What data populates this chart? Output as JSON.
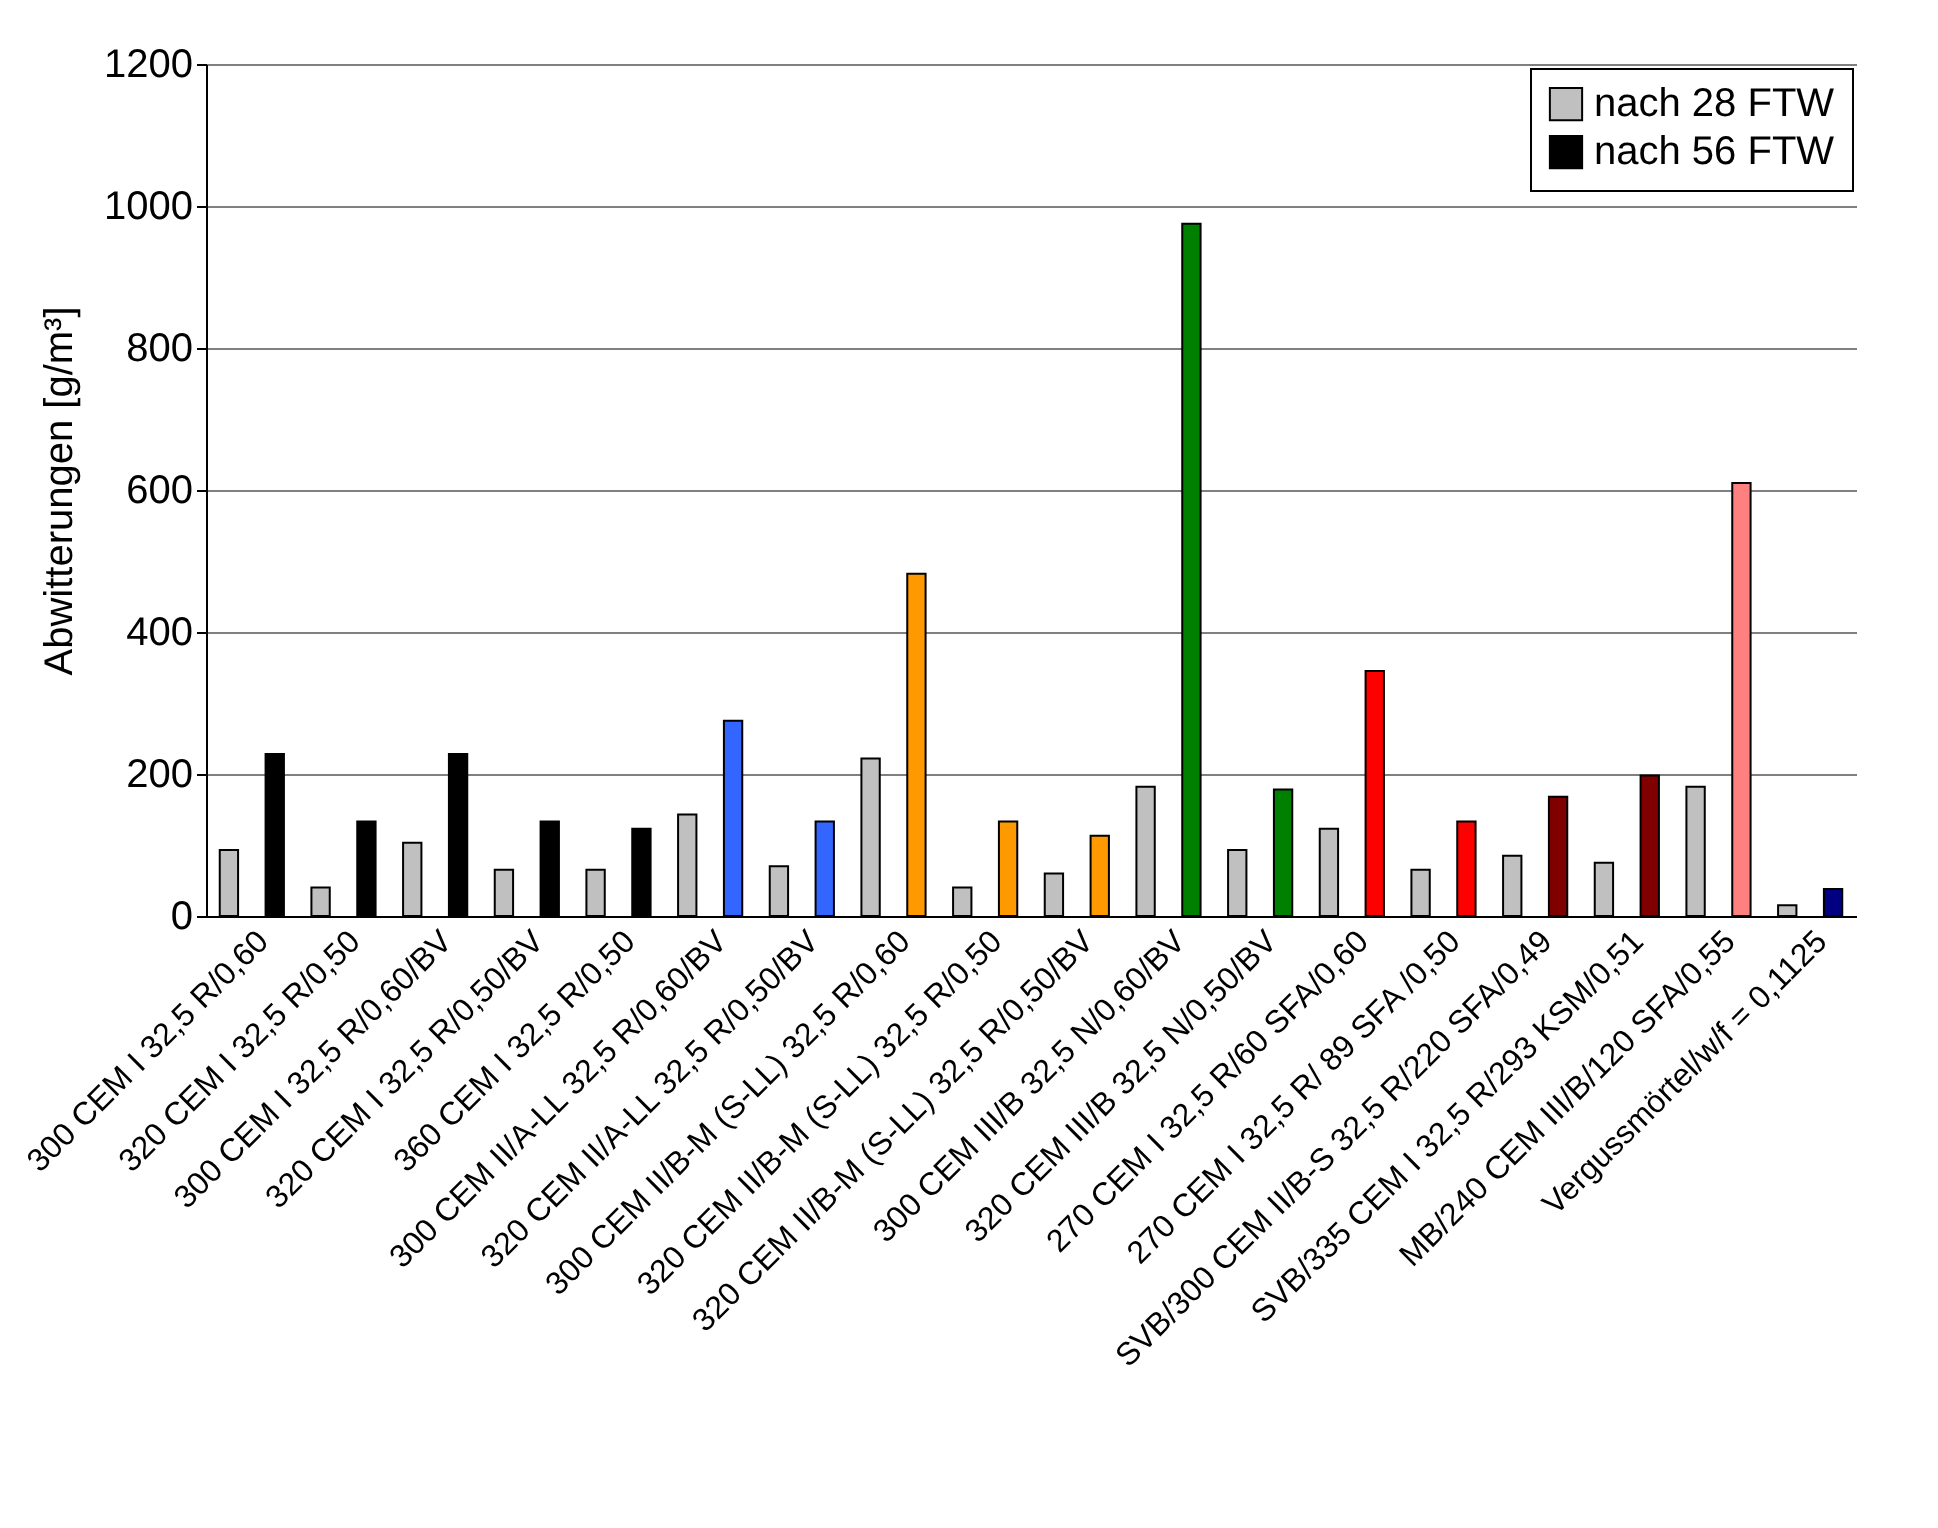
{
  "chart_data": {
    "type": "bar",
    "ylabel": "Abwitterungen [g/m³]",
    "categories": [
      "300 CEM I 32,5 R/0,60",
      "320 CEM I 32,5 R/0,50",
      "300 CEM I 32,5 R/0,60/BV",
      "320 CEM I 32,5 R/0,50/BV",
      "360 CEM I 32,5 R/0,50",
      "300 CEM II/A-LL 32,5 R/0,60/BV",
      "320 CEM II/A-LL 32,5 R/0,50/BV",
      "300 CEM II/B-M (S-LL) 32,5 R/0,60",
      "320 CEM II/B-M (S-LL) 32,5 R/0,50",
      "320 CEM II/B-M (S-LL) 32,5 R/0,50/BV",
      "300 CEM III/B 32,5 N/0,60/BV",
      "320 CEM III/B 32,5 N/0,50/BV",
      "270 CEM I 32,5 R/60 SFA/0,60",
      "270 CEM I 32,5 R/ 89 SFA /0,50",
      "SVB/300 CEM II/B-S 32,5 R/220 SFA/0,49",
      "SVB/335 CEM I 32,5 R/293 KSM/0,51",
      "MB/240 CEM III/B/120 SFA/0,55",
      "Vergussmörtel/w/f = 0,1125"
    ],
    "series": [
      {
        "name": "nach 28 FTW",
        "color": "#c0c0c0",
        "values": [
          93,
          40,
          103,
          65,
          65,
          143,
          70,
          222,
          40,
          60,
          182,
          93,
          123,
          65,
          85,
          75,
          182,
          15
        ]
      },
      {
        "name": "nach 56 FTW",
        "color": "#000000",
        "values": [
          228,
          133,
          228,
          133,
          123,
          275,
          133,
          482,
          133,
          113,
          975,
          178,
          345,
          133,
          168,
          198,
          610,
          38
        ],
        "colors": [
          "#000000",
          "#000000",
          "#000000",
          "#000000",
          "#000000",
          "#3366ff",
          "#3366ff",
          "#ff9900",
          "#ff9900",
          "#ff9900",
          "#008000",
          "#008000",
          "#ff0000",
          "#ff0000",
          "#800000",
          "#800000",
          "#ff8080",
          "#000080"
        ]
      }
    ],
    "ylim": [
      0,
      1200
    ],
    "yticks": [
      0,
      200,
      400,
      600,
      800,
      1000,
      1200
    ],
    "grid": "y",
    "legend": "top right"
  }
}
